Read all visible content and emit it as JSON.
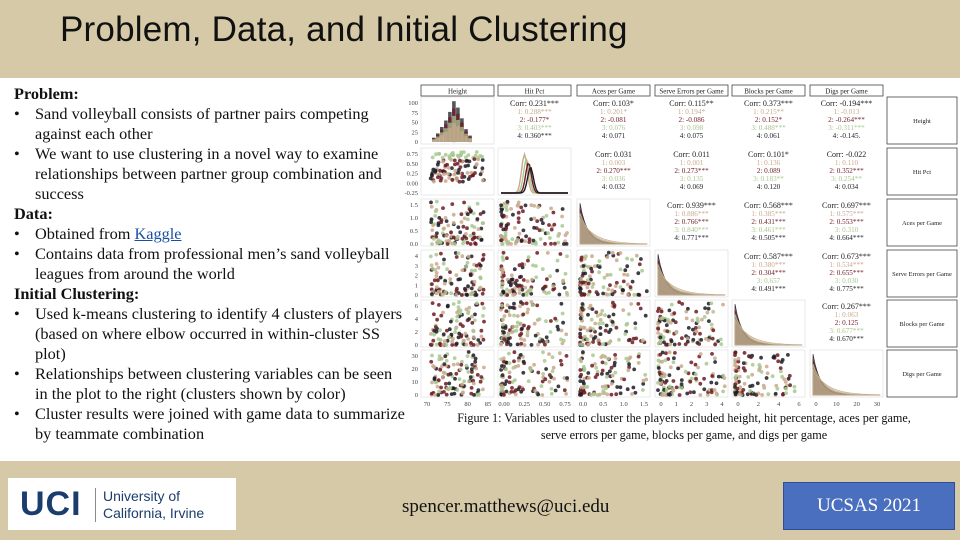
{
  "slide": {
    "title": "Problem, Data, and Initial Clustering",
    "email": "spencer.matthews@uci.edu",
    "conference": "UCSAS 2021",
    "logo": {
      "mark": "UCI",
      "line1": "University of",
      "line2": "California, Irvine"
    }
  },
  "problem": {
    "heading": "Problem:",
    "bullets": [
      "Sand volleyball consists of partner pairs competing against each other",
      "We want to use clustering in a novel way to examine relationships between partner group combination and success"
    ]
  },
  "data_section": {
    "heading": "Data:",
    "source_prefix": "Obtained from ",
    "source_link": "Kaggle",
    "bullet2": "Contains data from professional men’s sand volleyball leagues from around the world"
  },
  "clustering": {
    "heading": "Initial Clustering:",
    "bullets": [
      "Used k-means clustering to identify 4 clusters of players (based on where elbow occurred in within-cluster SS plot)",
      "Relationships between clustering variables can be seen in the plot to the right (clusters shown by color)",
      "Cluster results were joined with game data to summarize by teammate combination"
    ]
  },
  "figure": {
    "caption_line1": "Figure 1: Variables used to cluster the players included height, hit percentage, aces per game,",
    "caption_line2": "serve errors per game, blocks per game, and digs per game",
    "variables": [
      "Height",
      "Hit Pct",
      "Aces per Game",
      "Serve Errors per Game",
      "Blocks per Game",
      "Digs per Game"
    ],
    "cluster_colors": {
      "1": "#c9a98c",
      "2": "#6e1a22",
      "3": "#a8c890",
      "4": "#1c1c26"
    },
    "correlations": [
      {
        "row": 1,
        "col": 2,
        "corr": "Corr: 0.231***",
        "c1": "1: 0.288***",
        "c2": "2: -0.177*",
        "c3": "3: 0.403***",
        "c4": "4: 0.360***"
      },
      {
        "row": 1,
        "col": 3,
        "corr": "Corr: 0.103*",
        "c1": "1: 0.201*",
        "c2": "2: -0.081",
        "c3": "3: 0.076",
        "c4": "4: 0.071"
      },
      {
        "row": 1,
        "col": 4,
        "corr": "Corr: 0.115**",
        "c1": "1: 0.194*",
        "c2": "2: -0.086",
        "c3": "3: 0.098",
        "c4": "4: 0.075"
      },
      {
        "row": 1,
        "col": 5,
        "corr": "Corr: 0.373***",
        "c1": "1: 0.215**",
        "c2": "2: 0.152*",
        "c3": "3: 0.488***",
        "c4": "4: 0.061"
      },
      {
        "row": 1,
        "col": 6,
        "corr": "Corr: -0.194***",
        "c1": "1: -0.013",
        "c2": "2: -0.264***",
        "c3": "3: -0.311***",
        "c4": "4: -0.145."
      },
      {
        "row": 2,
        "col": 3,
        "corr": "Corr: 0.031",
        "c1": "1: 0.003",
        "c2": "2: 0.270***",
        "c3": "3: 0.036",
        "c4": "4: 0.032"
      },
      {
        "row": 2,
        "col": 4,
        "corr": "Corr: 0.011",
        "c1": "1: 0.001",
        "c2": "2: 0.273***",
        "c3": "3: 0.135",
        "c4": "4: 0.069"
      },
      {
        "row": 2,
        "col": 5,
        "corr": "Corr: 0.101*",
        "c1": "1: 0.136",
        "c2": "2: 0.089",
        "c3": "3: 0.183**",
        "c4": "4: 0.120"
      },
      {
        "row": 2,
        "col": 6,
        "corr": "Corr: -0.022",
        "c1": "1: 0.110",
        "c2": "2: 0.352***",
        "c3": "3: 0.254**",
        "c4": "4: 0.034"
      },
      {
        "row": 3,
        "col": 4,
        "corr": "Corr: 0.939***",
        "c1": "1: 0.886***",
        "c2": "2: 0.766***",
        "c3": "3: 0.840***",
        "c4": "4: 0.771***"
      },
      {
        "row": 3,
        "col": 5,
        "corr": "Corr: 0.568***",
        "c1": "1: 0.385***",
        "c2": "2: 0.431***",
        "c3": "3: 0.461***",
        "c4": "4: 0.505***"
      },
      {
        "row": 3,
        "col": 6,
        "corr": "Corr: 0.697***",
        "c1": "1: 0.575***",
        "c2": "2: 0.553***",
        "c3": "3: 0.310",
        "c4": "4: 0.664***"
      },
      {
        "row": 4,
        "col": 5,
        "corr": "Corr: 0.587***",
        "c1": "1: 0.380***",
        "c2": "2: 0.304***",
        "c3": "3: 0.657",
        "c4": "4: 0.491***"
      },
      {
        "row": 4,
        "col": 6,
        "corr": "Corr: 0.673***",
        "c1": "1: 0.534***",
        "c2": "2: 0.655***",
        "c3": "3: 0.030",
        "c4": "4: 0.775***"
      },
      {
        "row": 5,
        "col": 6,
        "corr": "Corr: 0.267***",
        "c1": "1: 0.063",
        "c2": "2: 0.125",
        "c3": "3: 0.677***",
        "c4": "4: 0.670***"
      }
    ],
    "y_ticks": {
      "height": [
        "100",
        "75",
        "50",
        "25",
        "0"
      ],
      "hitpct": [
        "0.75",
        "0.50",
        "0.25",
        "0.00",
        "-0.25"
      ],
      "aces": [
        "1.5",
        "1.0",
        "0.5",
        "0.0"
      ],
      "serve": [
        "4",
        "3",
        "2",
        "1",
        "0"
      ],
      "blocks": [
        "6",
        "4",
        "2",
        "0"
      ],
      "digs": [
        "30",
        "20",
        "10",
        "0"
      ]
    },
    "x_ticks": {
      "height": [
        "70",
        "75",
        "80",
        "85"
      ],
      "hitpct": [
        "0.00",
        "0.25",
        "0.50",
        "0.75"
      ],
      "aces": [
        "0.0",
        "0.5",
        "1.0",
        "1.5"
      ],
      "serve": [
        "0",
        "1",
        "2",
        "3",
        "4"
      ],
      "blocks": [
        "0",
        "2",
        "4",
        "6"
      ],
      "digs": [
        "0",
        "10",
        "20",
        "30"
      ]
    }
  }
}
